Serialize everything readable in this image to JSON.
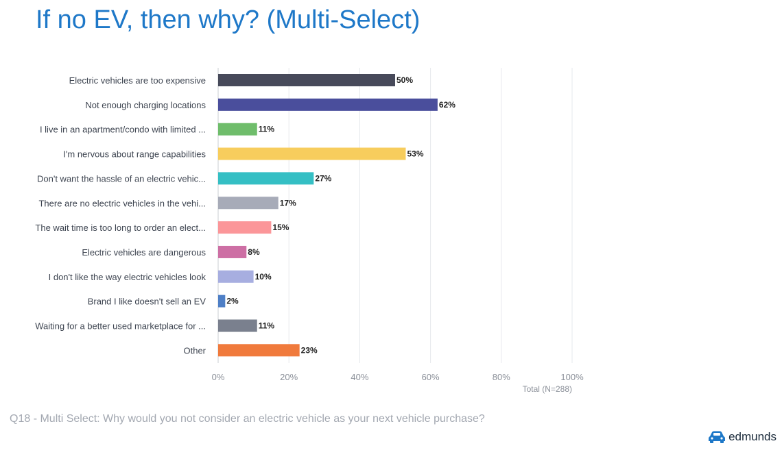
{
  "title": "If no EV, then why? (Multi-Select)",
  "footnote": "Q18 - Multi Select: Why would you not consider an electric vehicle as your next vehicle purchase?",
  "brand": {
    "name": "edmunds",
    "icon": "car-icon",
    "color": "#1e78c8"
  },
  "chart_data": {
    "type": "bar",
    "orientation": "horizontal",
    "categories": [
      "Electric vehicles are too expensive",
      "Not enough charging locations",
      "I live in an apartment/condo with limited ...",
      "I'm nervous about range capabilities",
      "Don't want the hassle of an electric vehic...",
      "There are no electric vehicles in the vehi...",
      "The wait time is too long to order an elect...",
      "Electric vehicles are dangerous",
      "I don't like the way electric vehicles look",
      "Brand I like doesn't sell an EV",
      "Waiting for a better used marketplace for ...",
      "Other"
    ],
    "values": [
      50,
      62,
      11,
      53,
      27,
      17,
      15,
      8,
      10,
      2,
      11,
      23
    ],
    "value_labels": [
      "50%",
      "62%",
      "11%",
      "53%",
      "27%",
      "17%",
      "15%",
      "8%",
      "10%",
      "2%",
      "11%",
      "23%"
    ],
    "colors": [
      "#474a5a",
      "#4a4e9c",
      "#6fbd6b",
      "#f7cd5d",
      "#35bfc4",
      "#a7abb8",
      "#fb9699",
      "#cd6fa4",
      "#a7aee0",
      "#4e7fc6",
      "#7a808e",
      "#f07a3c"
    ],
    "xlim": [
      0,
      100
    ],
    "xticks": [
      0,
      20,
      40,
      60,
      80,
      100
    ],
    "xtick_labels": [
      "0%",
      "20%",
      "40%",
      "60%",
      "80%",
      "100%"
    ],
    "x_note": "Total (N=288)",
    "grid": true
  }
}
